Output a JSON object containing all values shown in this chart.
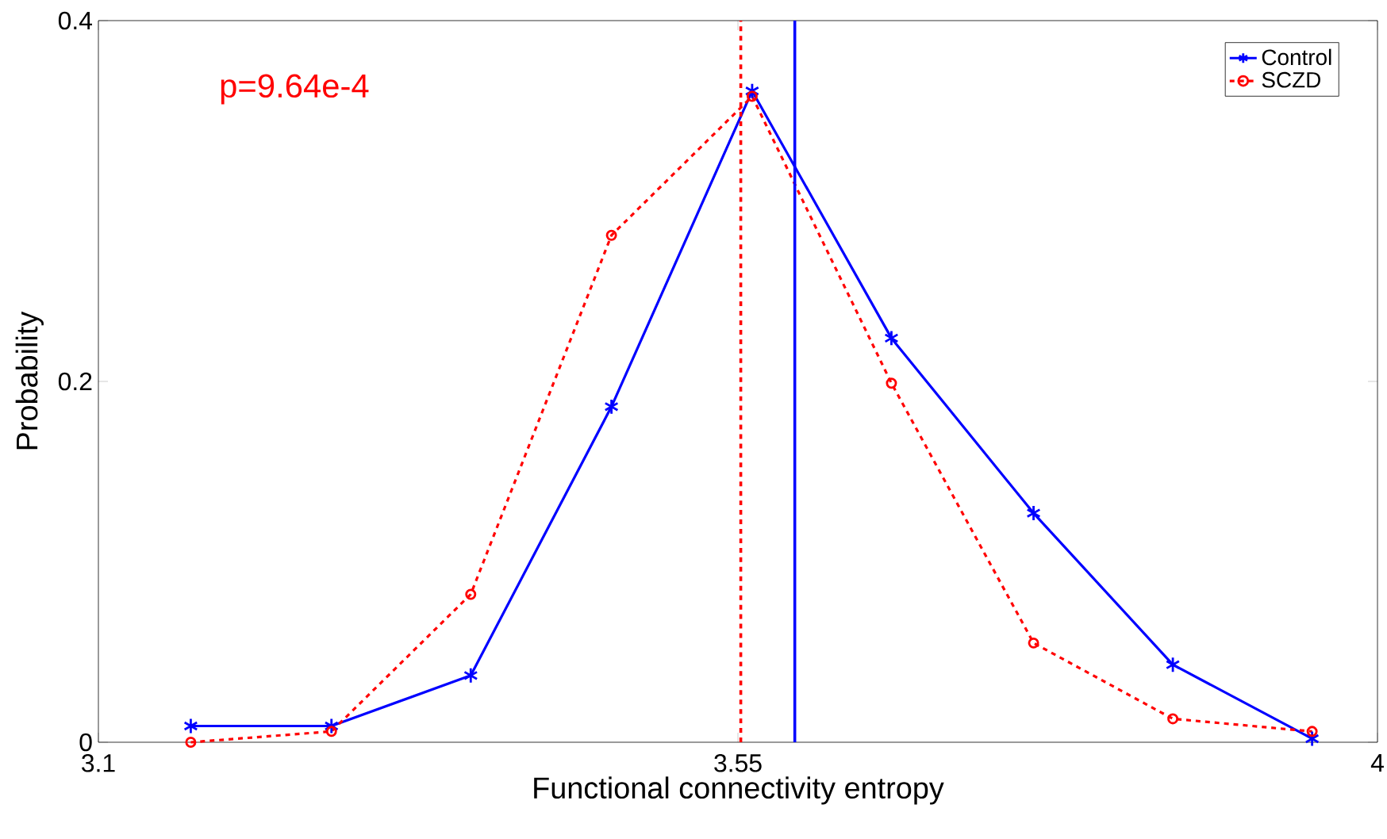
{
  "chart_data": {
    "type": "line",
    "xlabel": "Functional connectivity entropy",
    "ylabel": "Probability",
    "annotations": [
      "p=9.64e-4"
    ],
    "xlim": [
      3.1,
      4
    ],
    "ylim": [
      0,
      0.4
    ],
    "xticks": [
      3.1,
      3.55,
      4
    ],
    "yticks": [
      0,
      0.2,
      0.4
    ],
    "legend": "top right",
    "grid": false,
    "series": [
      {
        "name": "Control",
        "color": "#0000ff",
        "marker": "cross",
        "line_style": "solid",
        "x": [
          3.165,
          3.264,
          3.362,
          3.461,
          3.56,
          3.658,
          3.758,
          3.856,
          3.954
        ],
        "values": [
          0.009,
          0.009,
          0.037,
          0.186,
          0.361,
          0.224,
          0.127,
          0.043,
          0.002
        ]
      },
      {
        "name": "SCZD",
        "color": "#ff0000",
        "marker": "circle",
        "line_style": "dashed",
        "x": [
          3.165,
          3.264,
          3.362,
          3.461,
          3.56,
          3.658,
          3.758,
          3.856,
          3.954
        ],
        "values": [
          0.0,
          0.006,
          0.082,
          0.281,
          0.358,
          0.199,
          0.055,
          0.013,
          0.006
        ]
      }
    ],
    "ref_lines": [
      {
        "axis": "x",
        "value": 3.59,
        "color": "#0000ff",
        "line_style": "solid"
      },
      {
        "axis": "x",
        "value": 3.552,
        "color": "#ff0000",
        "line_style": "dashed"
      }
    ]
  }
}
